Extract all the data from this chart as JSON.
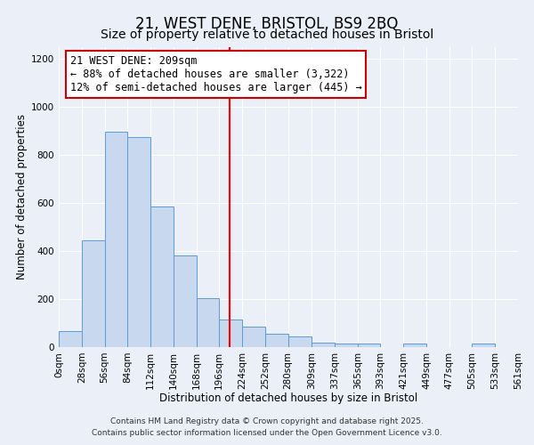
{
  "title": "21, WEST DENE, BRISTOL, BS9 2BQ",
  "subtitle": "Size of property relative to detached houses in Bristol",
  "xlabel": "Distribution of detached houses by size in Bristol",
  "ylabel": "Number of detached properties",
  "bin_edges": [
    0,
    28,
    56,
    84,
    112,
    140,
    168,
    196,
    224,
    252,
    280,
    309,
    337,
    365,
    393,
    421,
    449,
    477,
    505,
    533,
    561
  ],
  "bin_labels": [
    "0sqm",
    "28sqm",
    "56sqm",
    "84sqm",
    "112sqm",
    "140sqm",
    "168sqm",
    "196sqm",
    "224sqm",
    "252sqm",
    "280sqm",
    "309sqm",
    "337sqm",
    "365sqm",
    "393sqm",
    "421sqm",
    "449sqm",
    "477sqm",
    "505sqm",
    "533sqm",
    "561sqm"
  ],
  "counts": [
    65,
    445,
    895,
    875,
    585,
    380,
    205,
    115,
    85,
    55,
    45,
    18,
    14,
    13,
    0,
    14,
    0,
    0,
    13,
    0
  ],
  "bar_color": "#c8d9ef",
  "bar_edge_color": "#5b9bd5",
  "vline_x": 209,
  "vline_color": "red",
  "annotation_title": "21 WEST DENE: 209sqm",
  "annotation_line1": "← 88% of detached houses are smaller (3,322)",
  "annotation_line2": "12% of semi-detached houses are larger (445) →",
  "annotation_box_color": "#ffffff",
  "annotation_box_edge": "#cc0000",
  "ylim": [
    0,
    1250
  ],
  "yticks": [
    0,
    200,
    400,
    600,
    800,
    1000,
    1200
  ],
  "background_color": "#eaeff8",
  "plot_background": "#eaeff8",
  "grid_color": "#ffffff",
  "footer_line1": "Contains HM Land Registry data © Crown copyright and database right 2025.",
  "footer_line2": "Contains public sector information licensed under the Open Government Licence v3.0.",
  "title_fontsize": 12,
  "subtitle_fontsize": 10,
  "axis_label_fontsize": 8.5,
  "tick_fontsize": 7.5,
  "annotation_fontsize": 8.5,
  "footer_fontsize": 6.5
}
